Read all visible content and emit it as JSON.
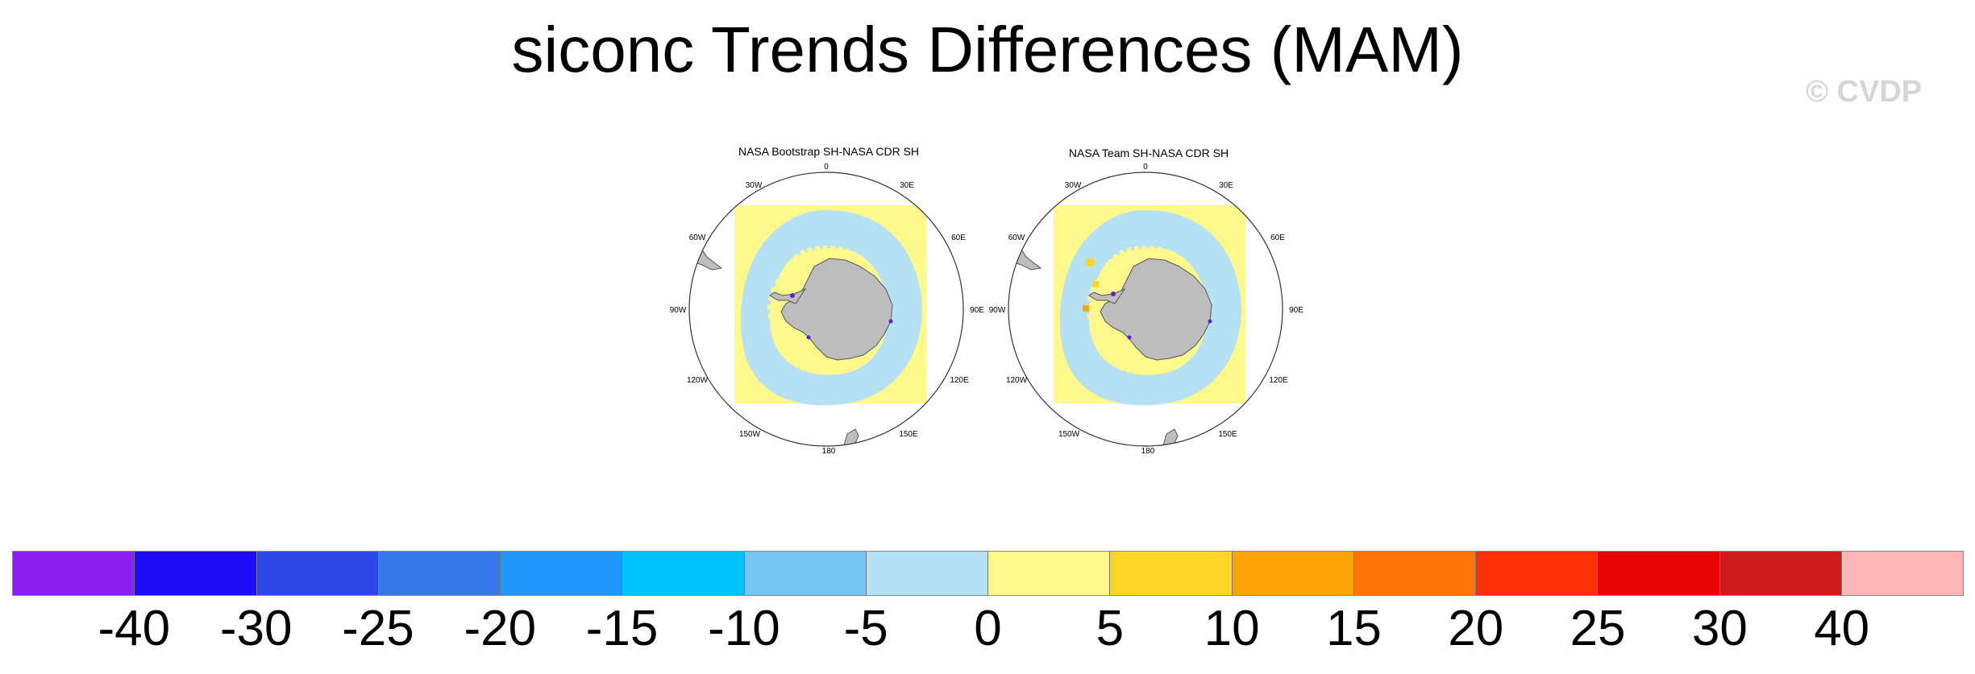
{
  "title": "siconc Trends Differences (MAM)",
  "copyright": "© CVDP",
  "panels": [
    {
      "title": "NASA Bootstrap SH-NASA CDR SH"
    },
    {
      "title": "NASA Team SH-NASA CDR SH"
    }
  ],
  "longitude_labels": {
    "top": "0",
    "l30w": "30W",
    "r30e": "30E",
    "l60w": "60W",
    "r60e": "60E",
    "l90w": "90W",
    "r90e": "90E",
    "l120w": "120W",
    "r120e": "120E",
    "l150w": "150W",
    "r150e": "150E",
    "bottom": "180"
  },
  "colorbar": {
    "labels": [
      "-40",
      "-30",
      "-25",
      "-20",
      "-15",
      "-10",
      "-5",
      "0",
      "5",
      "10",
      "15",
      "20",
      "25",
      "30",
      "40"
    ],
    "colors": [
      "#8a1ff0",
      "#1e0cf6",
      "#2e48e8",
      "#3678ea",
      "#1e96fa",
      "#02c2fd",
      "#76c6f2",
      "#b6e0f4",
      "#fef88d",
      "#fed62a",
      "#fda508",
      "#fd7506",
      "#fd2f04",
      "#e70406",
      "#cf1b1d",
      "#fdb6b6"
    ]
  }
}
